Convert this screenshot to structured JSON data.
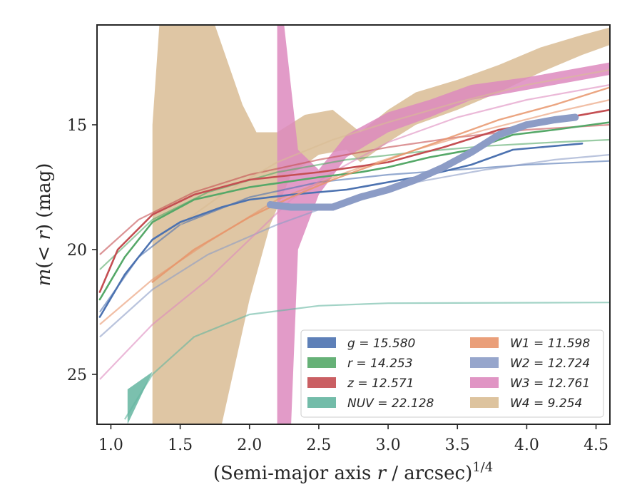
{
  "chart_data": {
    "type": "line",
    "xlabel": "(Semi-major axis r / arcsec)^{1/4}",
    "xlabel_parts": {
      "prefix": "(Semi-major axis ",
      "var": "r",
      "suffix": " / arcsec)",
      "exponent": "1/4"
    },
    "ylabel": "m(< r) (mag)",
    "ylabel_parts": {
      "m": "m",
      "open": "(",
      "lt": "< ",
      "r": "r",
      "close": ")",
      "unit": " (mag)"
    },
    "xlim": [
      0.9,
      4.6
    ],
    "ylim": [
      27.0,
      11.0
    ],
    "y_inverted": true,
    "xticks": [
      1.0,
      1.5,
      2.0,
      2.5,
      3.0,
      3.5,
      4.0,
      4.5
    ],
    "xtick_labels": [
      "1.0",
      "1.5",
      "2.0",
      "2.5",
      "3.0",
      "3.5",
      "4.0",
      "4.5"
    ],
    "yticks": [
      15,
      20,
      25
    ],
    "ytick_labels": [
      "15",
      "20",
      "25"
    ],
    "grid": false,
    "legend_position": "lower-right",
    "legend_columns": 2,
    "series": [
      {
        "name": "g",
        "band": "g",
        "total": "15.580",
        "color": "#4c72b0",
        "profile": [
          [
            0.92,
            22.7
          ],
          [
            1.1,
            21.0
          ],
          [
            1.3,
            19.6
          ],
          [
            1.5,
            18.9
          ],
          [
            1.8,
            18.3
          ],
          [
            2.0,
            18.0
          ],
          [
            2.3,
            17.8
          ],
          [
            2.7,
            17.6
          ],
          [
            3.0,
            17.3
          ],
          [
            3.3,
            17.0
          ],
          [
            3.6,
            16.6
          ],
          [
            3.9,
            16.0
          ],
          [
            4.1,
            15.9
          ],
          [
            4.4,
            15.75
          ]
        ],
        "model": [
          [
            0.92,
            22.5
          ],
          [
            1.2,
            20.3
          ],
          [
            1.5,
            19.0
          ],
          [
            2.0,
            17.9
          ],
          [
            2.5,
            17.3
          ],
          [
            3.0,
            17.0
          ],
          [
            3.5,
            16.8
          ],
          [
            4.0,
            16.6
          ],
          [
            4.6,
            16.45
          ]
        ]
      },
      {
        "name": "r",
        "band": "r",
        "total": "14.253",
        "color": "#55a868",
        "profile": [
          [
            0.92,
            22.0
          ],
          [
            1.1,
            20.3
          ],
          [
            1.3,
            18.9
          ],
          [
            1.6,
            18.0
          ],
          [
            2.0,
            17.5
          ],
          [
            2.5,
            17.1
          ],
          [
            2.8,
            16.9
          ],
          [
            3.0,
            16.7
          ],
          [
            3.3,
            16.3
          ],
          [
            3.6,
            16.0
          ],
          [
            3.9,
            15.4
          ],
          [
            4.2,
            15.2
          ],
          [
            4.6,
            14.9
          ]
        ],
        "model": [
          [
            0.92,
            20.8
          ],
          [
            1.3,
            18.8
          ],
          [
            1.7,
            17.7
          ],
          [
            2.2,
            16.9
          ],
          [
            2.7,
            16.4
          ],
          [
            3.2,
            16.1
          ],
          [
            3.7,
            15.85
          ],
          [
            4.2,
            15.7
          ],
          [
            4.6,
            15.6
          ]
        ]
      },
      {
        "name": "z",
        "band": "z",
        "total": "12.571",
        "color": "#c44e52",
        "profile": [
          [
            0.92,
            21.7
          ],
          [
            1.05,
            20.0
          ],
          [
            1.3,
            18.6
          ],
          [
            1.6,
            17.8
          ],
          [
            2.0,
            17.2
          ],
          [
            2.5,
            16.9
          ],
          [
            3.0,
            16.5
          ],
          [
            3.4,
            15.9
          ],
          [
            3.8,
            15.2
          ],
          [
            4.1,
            14.9
          ],
          [
            4.6,
            14.4
          ]
        ],
        "model": [
          [
            0.92,
            20.2
          ],
          [
            1.2,
            18.8
          ],
          [
            1.6,
            17.7
          ],
          [
            2.0,
            17.0
          ],
          [
            2.5,
            16.4
          ],
          [
            3.0,
            15.9
          ],
          [
            3.5,
            15.5
          ],
          [
            4.0,
            15.2
          ],
          [
            4.6,
            15.0
          ]
        ]
      },
      {
        "name": "NUV",
        "band": "NUV",
        "total": "22.128",
        "color": "#64b5a0",
        "band_upper": [
          [
            1.12,
            25.6
          ],
          [
            1.3,
            24.9
          ]
        ],
        "band_lower": [
          [
            1.12,
            27.0
          ],
          [
            1.3,
            24.9
          ]
        ],
        "model": [
          [
            1.1,
            26.8
          ],
          [
            1.3,
            25.0
          ],
          [
            1.6,
            23.5
          ],
          [
            2.0,
            22.6
          ],
          [
            2.5,
            22.25
          ],
          [
            3.0,
            22.15
          ],
          [
            4.6,
            22.12
          ]
        ]
      },
      {
        "name": "W1",
        "band": "W1",
        "total": "11.598",
        "color": "#e8956b",
        "profile": [
          [
            1.3,
            21.3
          ],
          [
            1.6,
            20.0
          ],
          [
            2.0,
            18.7
          ],
          [
            2.3,
            17.9
          ],
          [
            2.6,
            17.2
          ],
          [
            3.0,
            16.4
          ],
          [
            3.4,
            15.6
          ],
          [
            3.8,
            14.8
          ],
          [
            4.2,
            14.2
          ],
          [
            4.6,
            13.5
          ]
        ],
        "model": [
          [
            0.92,
            23.0
          ],
          [
            1.3,
            21.2
          ],
          [
            1.7,
            19.7
          ],
          [
            2.2,
            18.0
          ],
          [
            2.7,
            16.9
          ],
          [
            3.2,
            16.0
          ],
          [
            3.7,
            15.2
          ],
          [
            4.2,
            14.5
          ],
          [
            4.6,
            14.0
          ]
        ]
      },
      {
        "name": "W2",
        "band": "W2",
        "total": "12.724",
        "color": "#8c9cc6",
        "profile": [
          [
            2.15,
            18.2
          ],
          [
            2.3,
            18.3
          ],
          [
            2.6,
            18.3
          ],
          [
            2.8,
            17.9
          ],
          [
            3.0,
            17.6
          ],
          [
            3.2,
            17.2
          ],
          [
            3.4,
            16.7
          ],
          [
            3.6,
            16.1
          ],
          [
            3.8,
            15.4
          ],
          [
            4.0,
            15.0
          ],
          [
            4.2,
            14.8
          ],
          [
            4.35,
            14.7
          ]
        ],
        "model": [
          [
            0.92,
            23.5
          ],
          [
            1.3,
            21.6
          ],
          [
            1.7,
            20.2
          ],
          [
            2.2,
            19.0
          ],
          [
            2.7,
            18.0
          ],
          [
            3.2,
            17.3
          ],
          [
            3.7,
            16.8
          ],
          [
            4.2,
            16.4
          ],
          [
            4.6,
            16.2
          ]
        ]
      },
      {
        "name": "W3",
        "band": "W3",
        "total": "12.761",
        "color": "#dd8abe",
        "band_upper": [
          [
            2.2,
            11.0
          ],
          [
            2.25,
            11.0
          ],
          [
            2.35,
            16.0
          ],
          [
            2.5,
            16.8
          ],
          [
            2.7,
            15.4
          ],
          [
            3.0,
            14.5
          ],
          [
            3.3,
            14.0
          ],
          [
            3.6,
            13.4
          ],
          [
            4.0,
            13.1
          ],
          [
            4.3,
            12.8
          ],
          [
            4.6,
            12.5
          ]
        ],
        "band_lower": [
          [
            2.2,
            27.0
          ],
          [
            2.3,
            27.0
          ],
          [
            2.35,
            20.0
          ],
          [
            2.5,
            17.8
          ],
          [
            2.7,
            16.3
          ],
          [
            3.0,
            15.3
          ],
          [
            3.3,
            14.7
          ],
          [
            3.6,
            14.0
          ],
          [
            4.0,
            13.6
          ],
          [
            4.3,
            13.3
          ],
          [
            4.6,
            13.0
          ]
        ],
        "model": [
          [
            0.92,
            25.2
          ],
          [
            1.3,
            23.0
          ],
          [
            1.7,
            21.2
          ],
          [
            2.0,
            19.6
          ],
          [
            2.3,
            18.0
          ],
          [
            2.6,
            16.9
          ],
          [
            3.0,
            15.7
          ],
          [
            3.5,
            14.7
          ],
          [
            4.0,
            14.0
          ],
          [
            4.6,
            13.4
          ]
        ]
      },
      {
        "name": "W4",
        "band": "W4",
        "total": "9.254",
        "color": "#d9bc94",
        "band_upper": [
          [
            1.3,
            15.0
          ],
          [
            1.35,
            11.0
          ],
          [
            1.75,
            11.0
          ],
          [
            1.95,
            14.2
          ],
          [
            2.05,
            15.3
          ],
          [
            2.2,
            15.3
          ],
          [
            2.4,
            14.6
          ],
          [
            2.6,
            14.4
          ],
          [
            2.8,
            15.3
          ],
          [
            3.0,
            14.4
          ],
          [
            3.2,
            13.7
          ],
          [
            3.5,
            13.2
          ],
          [
            3.8,
            12.6
          ],
          [
            4.1,
            11.9
          ],
          [
            4.4,
            11.4
          ],
          [
            4.6,
            11.1
          ]
        ],
        "band_lower": [
          [
            1.3,
            27.0
          ],
          [
            1.8,
            27.0
          ],
          [
            2.0,
            22.0
          ],
          [
            2.15,
            19.0
          ],
          [
            2.3,
            17.0
          ],
          [
            2.5,
            16.2
          ],
          [
            2.7,
            16.0
          ],
          [
            2.8,
            16.5
          ],
          [
            3.0,
            15.7
          ],
          [
            3.2,
            15.0
          ],
          [
            3.5,
            14.4
          ],
          [
            3.8,
            13.7
          ],
          [
            4.1,
            12.9
          ],
          [
            4.4,
            12.2
          ],
          [
            4.6,
            11.8
          ]
        ],
        "model": [
          [
            1.5,
            19.0
          ],
          [
            1.8,
            17.8
          ],
          [
            2.2,
            16.5
          ],
          [
            2.6,
            15.6
          ],
          [
            3.0,
            14.9
          ],
          [
            3.5,
            14.1
          ],
          [
            4.0,
            13.4
          ],
          [
            4.6,
            12.8
          ]
        ]
      }
    ]
  }
}
